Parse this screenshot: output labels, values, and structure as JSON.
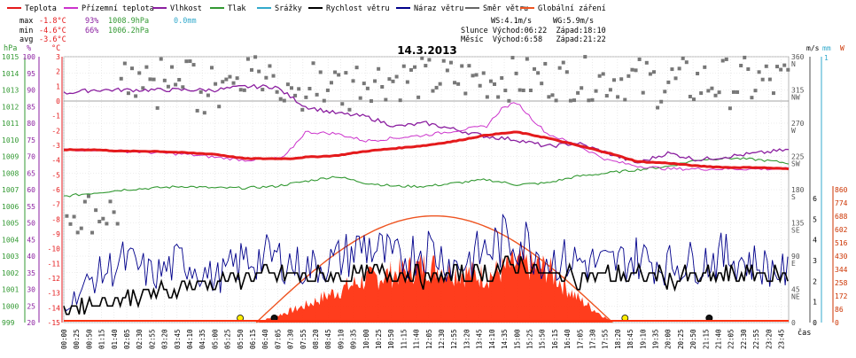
{
  "legend": [
    {
      "label": "Teplota",
      "color": "#e41a1c"
    },
    {
      "label": "Přízemní teplota",
      "color": "#cc33cc"
    },
    {
      "label": "Vlhkost",
      "color": "#8b1fa0"
    },
    {
      "label": "Tlak",
      "color": "#339933"
    },
    {
      "label": "Srážky",
      "color": "#33aacc"
    },
    {
      "label": "Rychlost větru",
      "color": "#000000"
    },
    {
      "label": "Náraz větru",
      "color": "#00008b"
    },
    {
      "label": "Směr větru",
      "color": "#666666"
    },
    {
      "label": "Globální záření",
      "color": "#ee5522"
    }
  ],
  "stats": {
    "max_label": "max",
    "max_temp": "-1.8°C",
    "max_hum": "93%",
    "max_press": "1008.9hPa",
    "max_rain": "0.0mm",
    "min_label": "min",
    "min_temp": "-4.6°C",
    "min_hum": "66%",
    "min_press": "1006.2hPa",
    "avg_label": "avg",
    "avg_temp": "-3.6°C"
  },
  "wind_info": {
    "ws": "WS:4.1m/s",
    "wg": "WG:5.9m/s",
    "sun": "Slunce Východ:06:22  Západ:18:10",
    "moon": "Měsíc  Východ:6:58   Západ:21:22"
  },
  "chart_data": {
    "type": "line",
    "title": "14.3.2013",
    "xlabel": "čas",
    "x_ticks": [
      "00:00",
      "00:25",
      "00:50",
      "01:15",
      "01:40",
      "02:05",
      "02:30",
      "02:55",
      "03:20",
      "03:45",
      "04:10",
      "04:35",
      "05:00",
      "05:25",
      "05:50",
      "06:15",
      "06:40",
      "07:05",
      "07:30",
      "07:55",
      "08:20",
      "08:45",
      "09:10",
      "09:35",
      "10:00",
      "10:25",
      "10:50",
      "11:15",
      "11:40",
      "12:05",
      "12:30",
      "12:55",
      "13:20",
      "13:45",
      "14:10",
      "14:35",
      "15:00",
      "15:25",
      "15:50",
      "16:15",
      "16:40",
      "17:05",
      "17:30",
      "17:55",
      "18:20",
      "18:45",
      "19:10",
      "19:35",
      "20:00",
      "20:25",
      "20:50",
      "21:15",
      "21:40",
      "22:05",
      "22:30",
      "22:55",
      "23:20",
      "23:45"
    ],
    "axes": {
      "pressure_hPa": {
        "label": "hPa",
        "color": "#339933",
        "ticks": [
          "1015",
          "1014",
          "1013",
          "1012",
          "1011",
          "1010",
          "1009",
          "1008",
          "1007",
          "1006",
          "1005",
          "1004",
          "1003",
          "1002",
          "1001",
          "1000",
          "999"
        ],
        "range": [
          999,
          1015
        ]
      },
      "humidity_pct": {
        "label": "%",
        "color": "#8b1fa0",
        "ticks": [
          "100",
          "95",
          "90",
          "85",
          "80",
          "75",
          "70",
          "65",
          "60",
          "55",
          "50",
          "45",
          "40",
          "35",
          "30",
          "25",
          "20"
        ],
        "range": [
          20,
          100
        ]
      },
      "temperature_C": {
        "label": "°C",
        "color": "#e41a1c",
        "ticks": [
          "3",
          "2",
          "1",
          "0",
          "-1",
          "-2",
          "-3",
          "-4",
          "-5",
          "-6",
          "-7",
          "-8",
          "-9",
          "-10",
          "-11",
          "-12",
          "-13",
          "-14",
          "-15"
        ],
        "range": [
          -15,
          3
        ]
      },
      "wind_dir_deg": {
        "label": "",
        "ticks": [
          "360 N",
          "315 NW",
          "270 W",
          "225 SW",
          "180 S",
          "135 SE",
          "90 E",
          "45 NE",
          "0"
        ],
        "range": [
          0,
          360
        ]
      },
      "wind_speed_ms": {
        "label": "m/s",
        "color": "#000000",
        "ticks": [
          "6",
          "5",
          "4",
          "3",
          "2",
          "1",
          "0"
        ],
        "range": [
          0,
          6
        ]
      },
      "rain_mm": {
        "label": "mm",
        "color": "#33aacc",
        "ticks": [
          "1"
        ],
        "range": [
          0,
          1
        ]
      },
      "radiation_W": {
        "label": "W",
        "color": "#cc3300",
        "ticks": [
          "860",
          "774",
          "688",
          "602",
          "516",
          "430",
          "344",
          "258",
          "172",
          "86",
          "0"
        ],
        "range": [
          0,
          860
        ]
      }
    },
    "series": [
      {
        "name": "Teplota",
        "unit": "°C",
        "x": [
          0,
          1,
          2,
          3,
          4,
          5,
          6,
          7,
          7.5,
          8,
          9,
          10,
          11,
          12,
          13,
          14,
          14.5,
          15,
          15.5,
          16,
          17,
          18,
          19,
          20,
          21,
          22,
          23,
          24
        ],
        "y": [
          -3.3,
          -3.3,
          -3.4,
          -3.4,
          -3.5,
          -3.6,
          -3.9,
          -3.9,
          -3.9,
          -3.8,
          -3.7,
          -3.4,
          -3.2,
          -3,
          -2.7,
          -2.3,
          -2.2,
          -2.1,
          -2.3,
          -2.5,
          -3,
          -3.5,
          -4.1,
          -4.2,
          -4.4,
          -4.5,
          -4.5,
          -4.6
        ]
      },
      {
        "name": "Přízemní teplota",
        "unit": "°C",
        "x": [
          0,
          1,
          2,
          3,
          4,
          5,
          6,
          7,
          7.3,
          8,
          9,
          10,
          11,
          12,
          13,
          14,
          14.5,
          15,
          15.5,
          16,
          17,
          18,
          19,
          20,
          21,
          22,
          23,
          24
        ],
        "y": [
          -3.3,
          -3.3,
          -3.4,
          -3.5,
          -3.6,
          -3.8,
          -4,
          -3.9,
          -3.8,
          -2.1,
          -2.2,
          -2.7,
          -2.5,
          -2.3,
          -2,
          -1.7,
          -0.5,
          -0.1,
          -1.2,
          -2.2,
          -3,
          -4,
          -4.4,
          -4.6,
          -4.6,
          -4.6,
          -4.6,
          -4.6
        ]
      },
      {
        "name": "Vlhkost",
        "unit": "%",
        "x": [
          0,
          1,
          2,
          3,
          4,
          5,
          6,
          7,
          8,
          9,
          10,
          11,
          12,
          13,
          14,
          15,
          16,
          17,
          18,
          19,
          20,
          21,
          22,
          23,
          24
        ],
        "y": [
          89,
          90,
          90,
          90,
          90,
          90,
          91,
          91,
          85,
          83,
          82,
          79,
          80,
          78,
          76,
          75,
          73,
          74,
          71,
          68,
          71,
          69,
          70,
          71,
          72
        ]
      },
      {
        "name": "Tlak",
        "unit": "hPa",
        "x": [
          0,
          1,
          2,
          3,
          4,
          5,
          6,
          7,
          8,
          9,
          10,
          11,
          12,
          13,
          14,
          15,
          16,
          17,
          18,
          19,
          20,
          21,
          22,
          23,
          24
        ],
        "y": [
          1006.6,
          1006.8,
          1007,
          1007.1,
          1007.2,
          1007.1,
          1007.1,
          1007.2,
          1007.5,
          1007.8,
          1007.4,
          1007.2,
          1007.2,
          1007.4,
          1007.6,
          1007.3,
          1007.4,
          1007.8,
          1008,
          1008.2,
          1008.4,
          1008.8,
          1008.9,
          1008.8,
          1008.6
        ]
      },
      {
        "name": "Rychlost větru",
        "unit": "m/s",
        "x": [
          0,
          1,
          2,
          3,
          4,
          5,
          6,
          7,
          8,
          9,
          10,
          11,
          12,
          13,
          14,
          15,
          16,
          17,
          18,
          19,
          20,
          21,
          22,
          23,
          24
        ],
        "y": [
          0.6,
          1,
          1.2,
          1.4,
          1.8,
          2,
          2.2,
          2.3,
          2.2,
          2.2,
          2.3,
          2.3,
          2.2,
          2.2,
          2.4,
          2.9,
          2.3,
          2.2,
          2.3,
          2.2,
          2.2,
          2.2,
          2.3,
          2.3,
          2.3
        ]
      },
      {
        "name": "Náraz větru",
        "unit": "m/s",
        "x": [
          0,
          1,
          2,
          3,
          4,
          5,
          6,
          7,
          8,
          9,
          10,
          11,
          12,
          13,
          14,
          15,
          16,
          17,
          18,
          19,
          20,
          21,
          22,
          23,
          24
        ],
        "y": [
          0.8,
          2.5,
          3.4,
          2.6,
          3.5,
          2.4,
          3.5,
          3.6,
          3,
          3.4,
          4.3,
          3.4,
          4.2,
          3.1,
          4,
          4.8,
          3.5,
          3.4,
          3.2,
          3.6,
          3.2,
          3.4,
          3.7,
          3.2,
          2.7
        ]
      },
      {
        "name": "Globální záření",
        "unit": "W",
        "x": [
          6.37,
          7,
          8,
          9,
          10,
          11,
          12,
          13,
          14,
          15,
          16,
          17,
          18.17
        ],
        "y": [
          0,
          40,
          110,
          200,
          280,
          320,
          370,
          330,
          300,
          380,
          350,
          160,
          0
        ]
      }
    ],
    "radiation_clear_sky_peak_W": 690,
    "wind_direction_points": "scatter, 0–360°",
    "grid": true,
    "legend_position": "top"
  }
}
